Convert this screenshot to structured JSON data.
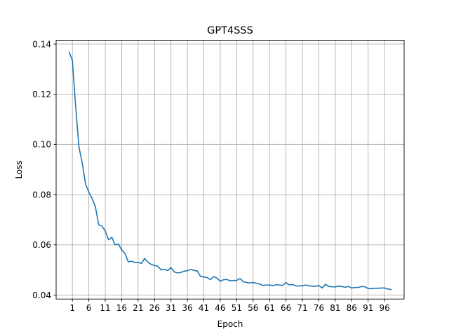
{
  "chart_data": {
    "type": "line",
    "title": "GPT4SSS",
    "xlabel": "Epoch",
    "ylabel": "Loss",
    "xlim": [
      -3.95,
      101.95
    ],
    "ylim": [
      0.0384,
      0.1415
    ],
    "xticks": [
      1,
      6,
      11,
      16,
      21,
      26,
      31,
      36,
      41,
      46,
      51,
      56,
      61,
      66,
      71,
      76,
      81,
      86,
      91,
      96
    ],
    "yticks": [
      0.04,
      0.06,
      0.08,
      0.1,
      0.12,
      0.14
    ],
    "ytick_labels": [
      "0.04",
      "0.06",
      "0.08",
      "0.10",
      "0.12",
      "0.14"
    ],
    "grid": true,
    "series_color": "#1f77b4",
    "series": [
      {
        "x": [
          0,
          1,
          2,
          3,
          4,
          5,
          6,
          7,
          8,
          9,
          10,
          11,
          12,
          13,
          14,
          15,
          16,
          17,
          18,
          19,
          20,
          21,
          22,
          23,
          24,
          25,
          26,
          27,
          28,
          29,
          30,
          31,
          32,
          33,
          34,
          35,
          36,
          37,
          38,
          39,
          40,
          41,
          42,
          43,
          44,
          45,
          46,
          47,
          48,
          49,
          50,
          51,
          52,
          53,
          54,
          55,
          56,
          57,
          58,
          59,
          60,
          61,
          62,
          63,
          64,
          65,
          66,
          67,
          68,
          69,
          70,
          71,
          72,
          73,
          74,
          75,
          76,
          77,
          78,
          79,
          80,
          81,
          82,
          83,
          84,
          85,
          86,
          87,
          88,
          89,
          90,
          91,
          92,
          93,
          94,
          95,
          96,
          97,
          98
        ],
        "values": [
          0.1368,
          0.1335,
          0.115,
          0.099,
          0.0925,
          0.0842,
          0.081,
          0.0785,
          0.0752,
          0.068,
          0.0675,
          0.0655,
          0.062,
          0.063,
          0.06,
          0.0603,
          0.058,
          0.0565,
          0.0532,
          0.0535,
          0.053,
          0.053,
          0.0526,
          0.0546,
          0.053,
          0.0522,
          0.0518,
          0.0515,
          0.05,
          0.0502,
          0.0498,
          0.0509,
          0.0492,
          0.0488,
          0.049,
          0.0495,
          0.0497,
          0.0502,
          0.0498,
          0.0496,
          0.0474,
          0.0472,
          0.047,
          0.0461,
          0.0474,
          0.0467,
          0.0455,
          0.0461,
          0.0462,
          0.0457,
          0.0458,
          0.0458,
          0.0466,
          0.0453,
          0.045,
          0.0448,
          0.045,
          0.0447,
          0.0444,
          0.0438,
          0.044,
          0.044,
          0.0437,
          0.0441,
          0.044,
          0.0438,
          0.045,
          0.044,
          0.0442,
          0.0436,
          0.0436,
          0.0437,
          0.044,
          0.0437,
          0.0435,
          0.0435,
          0.0438,
          0.0428,
          0.0443,
          0.0434,
          0.0433,
          0.0432,
          0.0436,
          0.0434,
          0.0431,
          0.0434,
          0.0428,
          0.043,
          0.043,
          0.0434,
          0.0433,
          0.0426,
          0.0425,
          0.0427,
          0.0427,
          0.0428,
          0.0428,
          0.0424,
          0.0422
        ]
      }
    ]
  }
}
